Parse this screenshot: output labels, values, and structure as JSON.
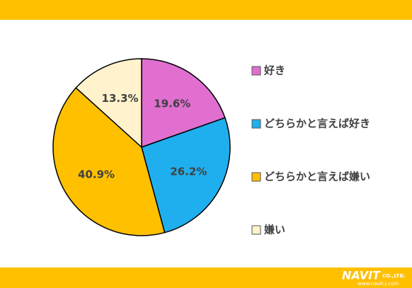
{
  "chart_data": {
    "type": "pie",
    "categories": [
      "好き",
      "どちらかと言えば好き",
      "どちらかと言えば嫌い",
      "嫌い"
    ],
    "values": [
      19.6,
      26.2,
      40.9,
      13.3
    ],
    "value_labels": [
      "19.6%",
      "26.2%",
      "40.9%",
      "13.3%"
    ],
    "colors": [
      "#E06FD0",
      "#1FAFEF",
      "#FFC000",
      "#FFF2CC"
    ],
    "legend": "right"
  },
  "logo": {
    "name": "NAVIT",
    "company": "CO.,LTD.",
    "url": "www.navit-j.com"
  }
}
